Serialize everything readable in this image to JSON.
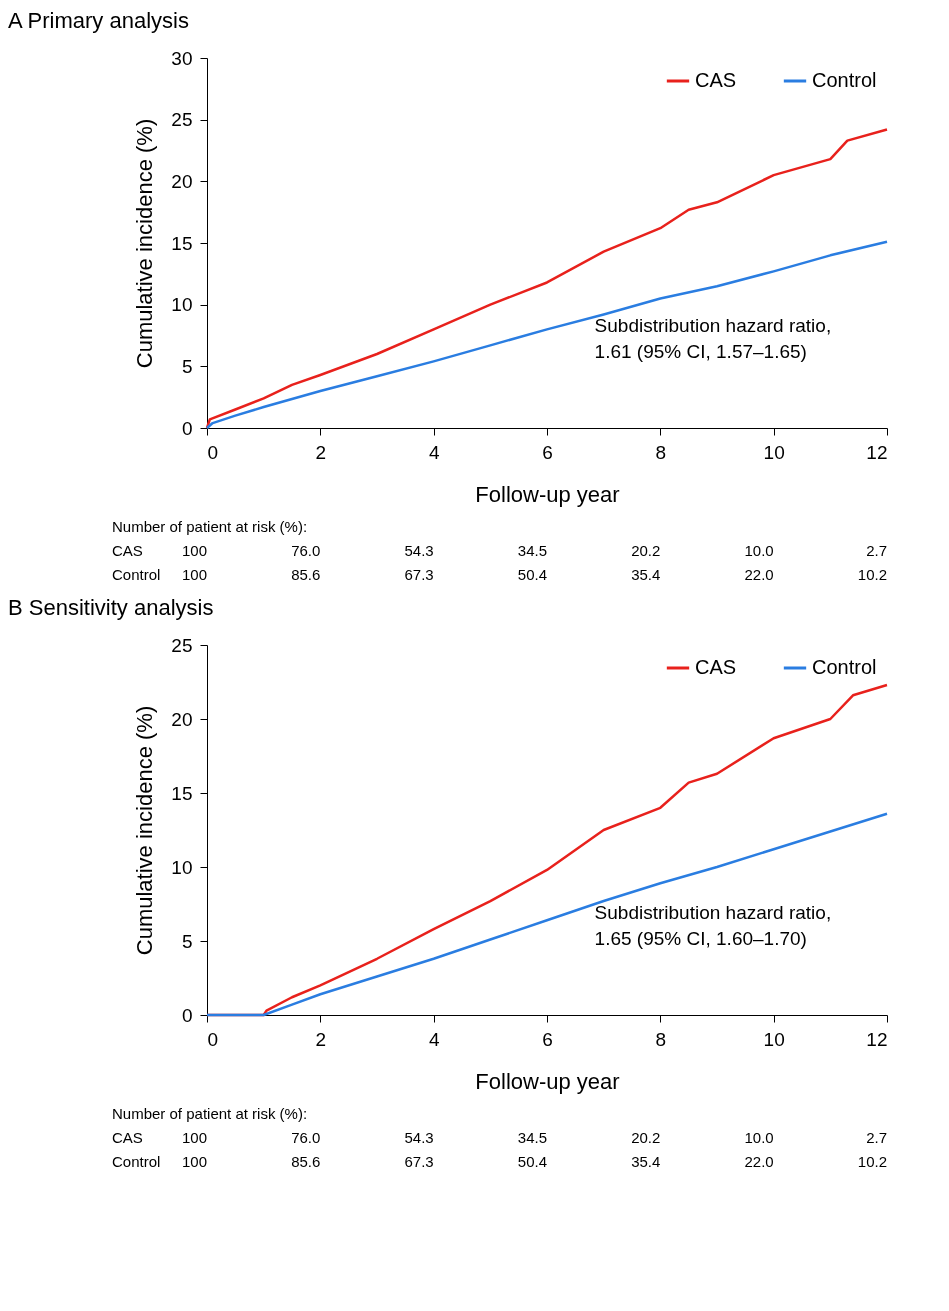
{
  "chart_data": [
    {
      "type": "line",
      "title": "A  Primary analysis",
      "xlabel": "Follow-up year",
      "ylabel": "Cumulative incidence (%)",
      "xlim": [
        0,
        12
      ],
      "xticks": [
        0,
        2,
        4,
        6,
        8,
        10,
        12
      ],
      "ylim": [
        0,
        30
      ],
      "yticks": [
        0,
        5,
        10,
        15,
        20,
        25,
        30
      ],
      "legend": "top right",
      "grid": false,
      "series": [
        {
          "name": "CAS",
          "color": "#e8211c",
          "x": [
            0,
            0.05,
            0.5,
            1,
            1.5,
            2,
            3,
            4,
            5,
            6,
            7,
            8,
            8.5,
            9,
            10,
            11,
            11.3,
            12
          ],
          "values": [
            0,
            0.7,
            1.5,
            2.4,
            3.5,
            4.3,
            6.0,
            8.0,
            10.0,
            11.8,
            14.3,
            16.2,
            17.7,
            18.3,
            20.5,
            21.8,
            23.3,
            24.2
          ]
        },
        {
          "name": "Control",
          "color": "#2a7de1",
          "x": [
            0,
            0.1,
            0.5,
            1,
            2,
            3,
            4,
            5,
            6,
            7,
            8,
            9,
            10,
            11,
            12
          ],
          "values": [
            0,
            0.4,
            1.0,
            1.7,
            3.0,
            4.2,
            5.4,
            6.7,
            8.0,
            9.2,
            10.5,
            11.5,
            12.7,
            14.0,
            15.1
          ]
        }
      ],
      "annotations": [
        "Subdistribution hazard ratio,\n1.61 (95% CI, 1.57–1.65)",
        "Number of patient at risk (%):",
        "CAS 100 76.0 54.3 34.5 20.2 10.0 2.7",
        "Control 100 85.6 67.3 50.4 35.4 22.0 10.2"
      ]
    },
    {
      "type": "line",
      "title": "B  Sensitivity analysis",
      "xlabel": "Follow-up year",
      "ylabel": "Cumulative incidence (%)",
      "xlim": [
        0,
        12
      ],
      "xticks": [
        0,
        2,
        4,
        6,
        8,
        10,
        12
      ],
      "ylim": [
        0,
        25
      ],
      "yticks": [
        0,
        5,
        10,
        15,
        20,
        25
      ],
      "legend": "top right",
      "grid": false,
      "series": [
        {
          "name": "CAS",
          "color": "#e8211c",
          "x": [
            0,
            1,
            1.05,
            1.5,
            2,
            3,
            4,
            5,
            6,
            7,
            8,
            8.5,
            9,
            10,
            11,
            11.4,
            12
          ],
          "values": [
            0,
            0,
            0.3,
            1.2,
            2.0,
            3.8,
            5.8,
            7.7,
            9.8,
            12.5,
            14.0,
            15.7,
            16.3,
            18.7,
            20.0,
            21.6,
            22.3
          ]
        },
        {
          "name": "Control",
          "color": "#2a7de1",
          "x": [
            0,
            1,
            1.5,
            2,
            3,
            4,
            5,
            6,
            7,
            8,
            9,
            10,
            11,
            12
          ],
          "values": [
            0,
            0,
            0.7,
            1.4,
            2.6,
            3.8,
            5.1,
            6.4,
            7.7,
            8.9,
            10.0,
            11.2,
            12.4,
            13.6
          ]
        }
      ],
      "annotations": [
        "Subdistribution hazard ratio,\n1.65 (95% CI, 1.60–1.70)",
        "Number of patient at risk (%):",
        "CAS 100 76.0 54.3 34.5 20.2 10.0 2.7",
        "Control 100 85.6 67.3 50.4 35.4 22.0 10.2"
      ]
    }
  ]
}
